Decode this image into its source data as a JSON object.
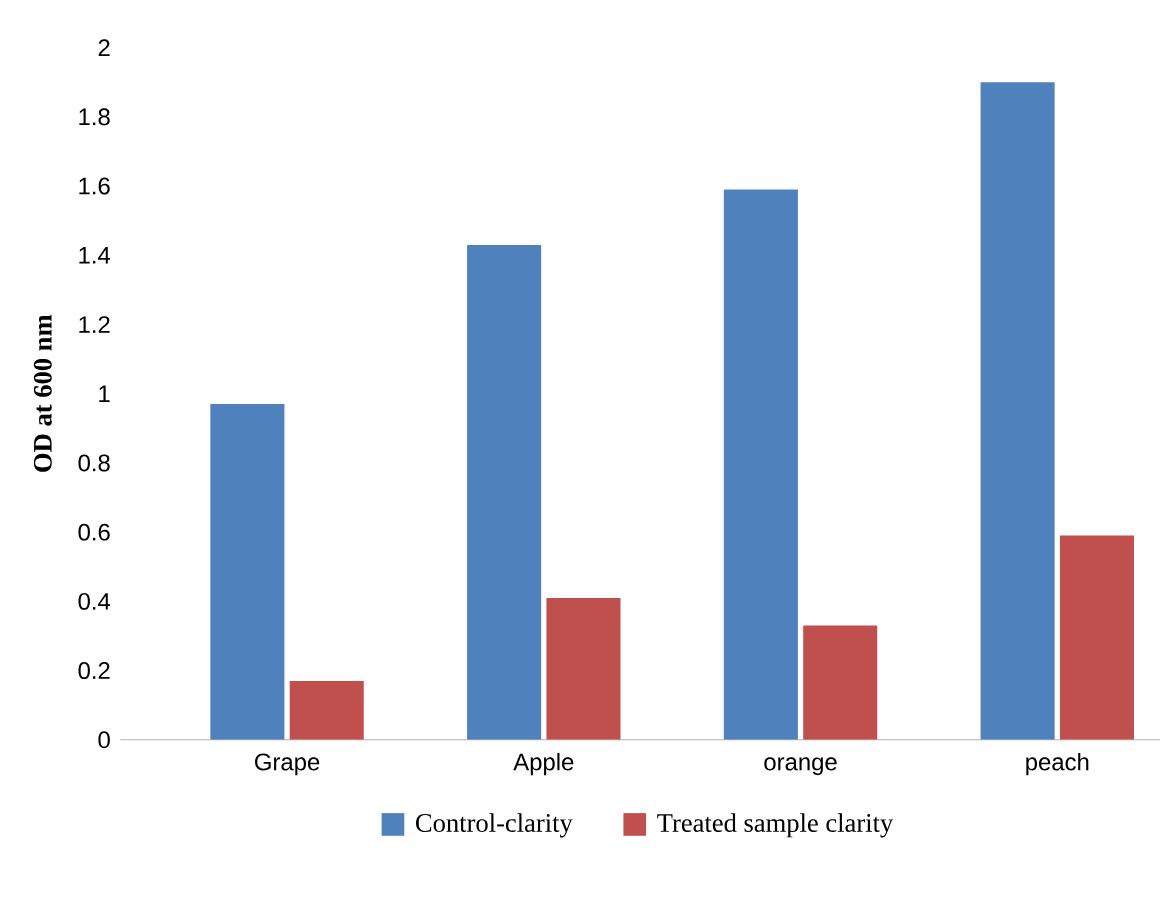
{
  "chart_data": {
    "type": "bar",
    "ylabel": "OD at 600 nm",
    "categories": [
      "Grape",
      "Apple",
      "orange",
      "peach"
    ],
    "series": [
      {
        "name": "Control-clarity",
        "color": "#4f81bd",
        "values": [
          0.97,
          1.43,
          1.59,
          1.9
        ]
      },
      {
        "name": "Treated sample clarity",
        "color": "#c0504d",
        "values": [
          0.17,
          0.41,
          0.33,
          0.59
        ]
      }
    ],
    "ylim": [
      0,
      2
    ],
    "yticks": [
      0,
      0.2,
      0.4,
      0.6,
      0.8,
      1,
      1.2,
      1.4,
      1.6,
      1.8,
      2
    ],
    "grid": false,
    "legend": "bottom"
  }
}
